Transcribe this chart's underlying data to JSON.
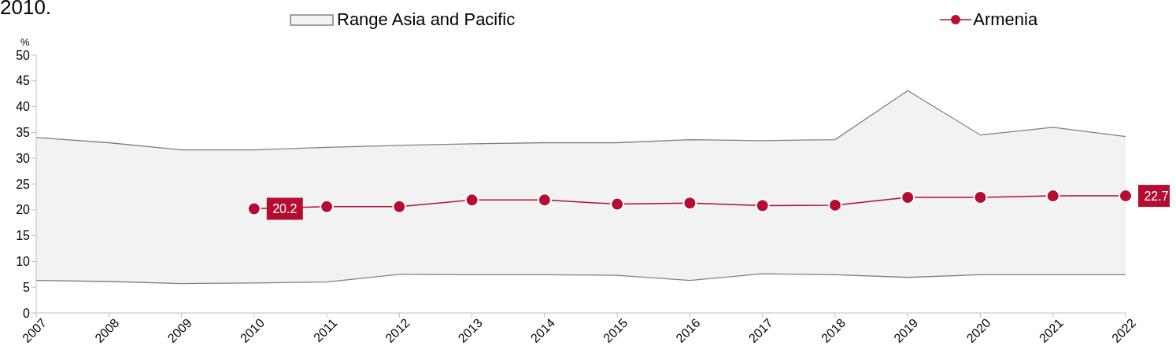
{
  "chart_data": {
    "type": "line",
    "annotations": [
      "2010."
    ],
    "ylabel": "%",
    "categories": [
      "2007",
      "2008",
      "2009",
      "2010",
      "2011",
      "2012",
      "2013",
      "2014",
      "2015",
      "2016",
      "2017",
      "2018",
      "2019",
      "2020",
      "2021",
      "2022"
    ],
    "series": [
      {
        "name": "Range Asia and Pacific",
        "type": "area",
        "color": "#f2f2f2",
        "values": [
          34.0,
          33.0,
          31.6,
          31.6,
          32.1,
          32.5,
          32.8,
          33.0,
          33.0,
          33.6,
          33.4,
          33.6,
          43.1,
          34.5,
          36.0,
          34.2
        ]
      },
      {
        "type": "area",
        "color": "#ffffff",
        "values": [
          6.3,
          6.1,
          5.7,
          5.8,
          6.0,
          7.5,
          7.4,
          7.4,
          7.3,
          6.3,
          7.6,
          7.4,
          6.9,
          7.4,
          7.4,
          7.4
        ]
      },
      {
        "name": "Armenia",
        "type": "line",
        "color": "#b50d32",
        "marker": "circle",
        "values": [
          null,
          null,
          null,
          20.2,
          20.6,
          20.6,
          21.9,
          21.9,
          21.1,
          21.3,
          20.8,
          20.9,
          22.4,
          22.4,
          22.7,
          22.7
        ],
        "value_labels": [
          null,
          null,
          null,
          "20.2",
          null,
          null,
          null,
          null,
          null,
          null,
          null,
          null,
          null,
          null,
          null,
          "22.7"
        ]
      }
    ],
    "ylim": [
      0,
      50
    ],
    "yticks": [
      0,
      5,
      10,
      15,
      20,
      25,
      30,
      35,
      40,
      45,
      50
    ],
    "legend": "top"
  }
}
